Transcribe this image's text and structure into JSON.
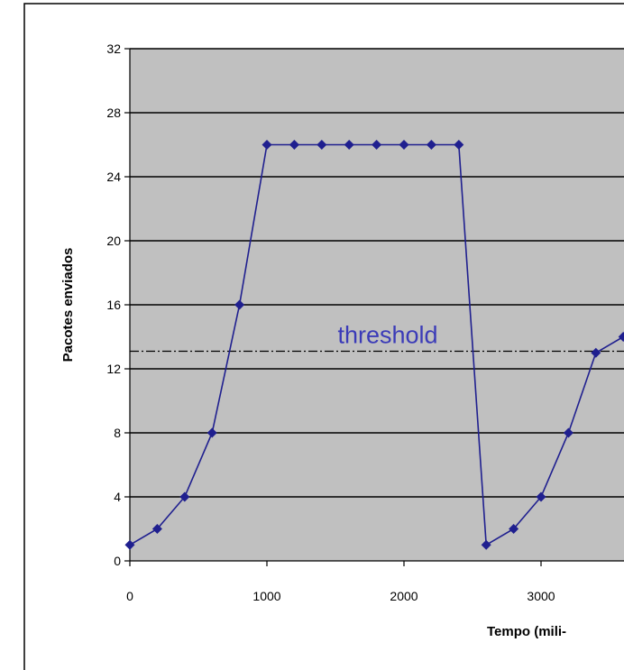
{
  "chart_data": {
    "type": "line",
    "xlabel": "Tempo (mili-",
    "ylabel": "Pacotes enviados",
    "xlim": [
      0,
      3600
    ],
    "ylim": [
      0,
      32
    ],
    "x_ticks": [
      "0",
      "1000",
      "2000",
      "3000"
    ],
    "y_ticks": [
      "0",
      "4",
      "8",
      "12",
      "16",
      "20",
      "24",
      "28",
      "32"
    ],
    "y_tick_values": [
      0,
      4,
      8,
      12,
      16,
      20,
      24,
      28,
      32
    ],
    "x_tick_values": [
      0,
      1000,
      2000,
      3000
    ],
    "grid": "horizontal",
    "plot_background": "#c0c0c0",
    "series_color": "#1f1f8f",
    "series": [
      {
        "points": [
          [
            0,
            1
          ],
          [
            200,
            2
          ],
          [
            400,
            4
          ],
          [
            600,
            8
          ],
          [
            800,
            16
          ],
          [
            1000,
            26
          ],
          [
            1200,
            26
          ],
          [
            1400,
            26
          ],
          [
            1600,
            26
          ],
          [
            1800,
            26
          ],
          [
            2000,
            26
          ],
          [
            2200,
            26
          ],
          [
            2400,
            26
          ],
          [
            2600,
            1
          ],
          [
            2800,
            2
          ],
          [
            3000,
            4
          ],
          [
            3200,
            8
          ],
          [
            3400,
            13
          ],
          [
            3600,
            14
          ]
        ]
      }
    ],
    "threshold": {
      "label": "threshold",
      "value": 13.1,
      "label_color": "#3b3bb8"
    }
  }
}
